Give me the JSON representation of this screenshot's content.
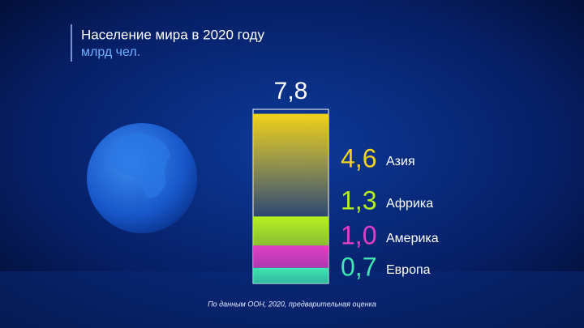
{
  "chart_data": {
    "type": "stacked-bar",
    "title": "Население мира в 2020 году",
    "subtitle": "млрд чел.",
    "total": {
      "value": 7.8,
      "label": "7,8"
    },
    "series": [
      {
        "name": "Азия",
        "color": "#f2d21a",
        "values": [
          4.6
        ],
        "value_labels": [
          "4,6"
        ]
      },
      {
        "name": "Африка",
        "color": "#b6f01e",
        "values": [
          1.3
        ],
        "value_labels": [
          "1,3"
        ]
      },
      {
        "name": "Америка",
        "color": "#e23fc6",
        "values": [
          1.0
        ],
        "value_labels": [
          "1,0"
        ]
      },
      {
        "name": "Европа",
        "color": "#3fe6b0",
        "values": [
          0.7
        ],
        "value_labels": [
          "0,7"
        ]
      }
    ],
    "source": "По данным ООН, 2020, предварительная оценка"
  }
}
